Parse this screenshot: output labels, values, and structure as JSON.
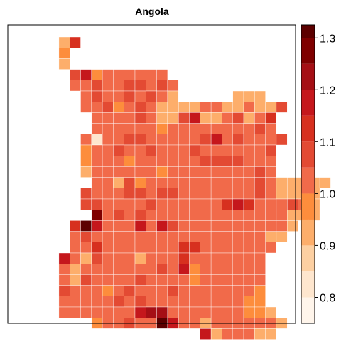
{
  "title": "Angola",
  "colors": {
    "background": "#ffffff",
    "frame": "#000000",
    "cell_stroke": "#ffffff"
  },
  "legend": {
    "breaks": [
      0.75,
      0.8,
      0.85,
      0.9,
      0.95,
      1.0,
      1.05,
      1.1,
      1.15,
      1.2,
      1.25,
      1.3,
      1.325
    ],
    "palette": [
      "#fff5eb",
      "#fee6ce",
      "#fdd0a2",
      "#fdae6b",
      "#fd8d3c",
      "#f16a4a",
      "#e34a33",
      "#d7301f",
      "#c5171c",
      "#a50f15",
      "#7f0000",
      "#5c0000"
    ],
    "ticks": [
      0.8,
      0.9,
      1.0,
      1.1,
      1.2,
      1.3
    ],
    "tick_labels": [
      "0.8",
      "0.9",
      "1.0",
      "1.1",
      "1.2",
      "1.3"
    ]
  },
  "chart_data": {
    "type": "heatmap",
    "title": "Angola",
    "grid_note": "rows from top; each row lists [start_col, values...]",
    "rows": [
      [
        [
          3,
          0.93,
          1.12
        ]
      ],
      [
        [
          3,
          0.98
        ]
      ],
      [
        [
          3,
          0.92
        ]
      ],
      [
        [
          4,
          1.05,
          1.15,
          0.95,
          1.0,
          1.03,
          1.0,
          1.03,
          1.0,
          1.0
        ]
      ],
      [
        [
          4,
          1.0,
          1.02,
          1.05,
          1.02,
          1.0,
          1.05,
          1.05,
          1.0,
          1.05,
          1.0
        ]
      ],
      [
        [
          5,
          1.0,
          1.05,
          1.0,
          1.02,
          1.05,
          1.03,
          1.05,
          1.02,
          0.93
        ],
        [
          19,
          0.93,
          0.93,
          0.93
        ]
      ],
      [
        [
          5,
          1.0,
          1.0,
          1.05,
          0.98,
          1.0,
          1.05,
          1.0,
          0.93,
          0.93,
          0.93,
          0.93,
          1.0,
          1.0,
          0.93,
          0.93,
          1.02,
          0.93,
          0.92,
          1.05
        ]
      ],
      [
        [
          6,
          1.0,
          1.0,
          1.0,
          1.02,
          1.05,
          1.0,
          0.93,
          0.93,
          1.05,
          1.15,
          0.93,
          0.93,
          1.0,
          1.05,
          0.93,
          1.0,
          1.12
        ]
      ],
      [
        [
          6,
          1.0,
          1.0,
          1.0,
          1.0,
          1.02,
          1.0,
          0.98,
          1.0,
          1.0,
          1.0,
          1.0,
          1.0,
          1.0,
          1.0,
          1.0,
          1.05,
          1.02
        ]
      ],
      [
        [
          5,
          1.0,
          0.82,
          1.02,
          1.0,
          1.05,
          1.05,
          1.0,
          1.0,
          1.02,
          1.0,
          1.0,
          1.05,
          1.15,
          1.0,
          1.05,
          1.0,
          1.0,
          1.0,
          1.05
        ]
      ],
      [
        [
          5,
          0.95,
          1.0,
          1.0,
          1.05,
          1.0,
          1.0,
          1.05,
          1.0,
          1.0,
          1.0,
          1.05,
          1.0,
          1.0,
          1.0,
          1.0,
          1.0,
          1.0,
          1.05
        ]
      ],
      [
        [
          5,
          0.95,
          1.0,
          1.02,
          1.0,
          0.98,
          1.02,
          1.0,
          1.0,
          1.0,
          1.0,
          1.0,
          1.05,
          1.05,
          1.05,
          1.05,
          1.0,
          1.0,
          1.02
        ]
      ],
      [
        [
          5,
          0.9,
          1.0,
          1.0,
          1.0,
          1.0,
          1.0,
          1.0,
          0.95,
          1.0,
          1.0,
          1.0,
          1.0,
          1.0,
          1.0,
          1.0,
          1.0,
          1.05,
          1.0
        ]
      ],
      [
        [
          6,
          1.0,
          1.02,
          0.92,
          1.05,
          0.95,
          1.0,
          1.0,
          1.0,
          1.0,
          1.0,
          1.0,
          1.0,
          1.0,
          1.0,
          1.0,
          1.05,
          1.0,
          0.93,
          0.93,
          0.93,
          0.93,
          0.93
        ]
      ],
      [
        [
          5,
          1.05,
          1.0,
          1.03,
          1.0,
          1.05,
          1.05,
          1.02,
          1.05,
          1.05,
          1.0,
          1.0,
          1.0,
          1.02,
          1.0,
          1.0,
          1.0,
          1.05,
          1.0,
          0.93,
          0.93,
          0.93,
          0.93
        ]
      ],
      [
        [
          5,
          1.05,
          1.05,
          1.02,
          1.0,
          1.03,
          1.0,
          1.05,
          1.0,
          1.0,
          1.02,
          1.0,
          1.0,
          1.0,
          1.12,
          1.15,
          1.12,
          1.0,
          1.0,
          1.0,
          1.05,
          1.0,
          0.93
        ]
      ],
      [
        [
          6,
          1.25,
          1.0,
          1.05,
          1.0,
          1.05,
          1.0,
          1.0,
          1.0,
          1.0,
          1.0,
          1.0,
          1.0,
          1.0,
          1.0,
          1.0,
          1.0,
          1.0,
          1.0,
          0.93,
          0.93,
          0.93
        ]
      ],
      [
        [
          4,
          1.12,
          1.3,
          1.15,
          1.0,
          1.0,
          1.0,
          1.15,
          1.0,
          1.15,
          1.05,
          1.0,
          1.0,
          1.0,
          1.0,
          1.0,
          1.0,
          1.0,
          1.0,
          1.0,
          1.0,
          0.93
        ]
      ],
      [
        [
          4,
          1.02,
          1.05,
          1.0,
          1.0,
          1.0,
          1.0,
          1.0,
          1.0,
          1.0,
          1.0,
          1.0,
          1.0,
          1.0,
          1.0,
          1.0,
          1.0,
          1.0,
          1.02,
          0.93,
          0.93
        ]
      ],
      [
        [
          4,
          1.0,
          1.02,
          1.12,
          1.0,
          1.0,
          1.0,
          1.0,
          1.0,
          1.0,
          1.0,
          1.12,
          1.12,
          1.0,
          1.0,
          1.0,
          1.0,
          1.0,
          1.0,
          1.0
        ]
      ],
      [
        [
          3,
          1.15,
          1.0,
          0.92,
          1.05,
          1.0,
          1.0,
          1.0,
          0.93,
          1.0,
          1.0,
          1.0,
          1.12,
          1.02,
          1.0,
          1.0,
          1.0,
          1.0,
          1.0,
          1.02
        ]
      ],
      [
        [
          3,
          1.0,
          0.93,
          1.0,
          1.02,
          1.0,
          1.0,
          1.0,
          1.0,
          1.0,
          1.05,
          1.0,
          1.15,
          0.98,
          1.0,
          1.0,
          1.0,
          1.0,
          1.0,
          1.0
        ]
      ],
      [
        [
          3,
          1.0,
          0.9,
          1.05,
          1.0,
          1.02,
          1.0,
          1.0,
          1.05,
          1.0,
          1.02,
          1.0,
          1.0,
          0.95,
          1.0,
          1.0,
          1.0,
          1.0,
          1.0,
          1.0
        ]
      ],
      [
        [
          3,
          1.05,
          1.02,
          1.0,
          1.0,
          0.95,
          1.0,
          1.05,
          1.0,
          1.0,
          1.0,
          1.05,
          1.0,
          1.0,
          1.0,
          1.0,
          1.0,
          1.0,
          1.0,
          0.95
        ]
      ],
      [
        [
          3,
          1.0,
          1.0,
          1.0,
          1.0,
          1.0,
          1.05,
          1.0,
          1.05,
          1.0,
          1.02,
          1.02,
          1.0,
          1.0,
          1.0,
          1.0,
          1.0,
          1.0,
          0.95,
          0.95
        ]
      ],
      [
        [
          3,
          1.0,
          1.0,
          1.0,
          1.0,
          1.0,
          1.02,
          1.0,
          1.15,
          1.22,
          1.2,
          1.02,
          1.0,
          1.0,
          1.0,
          1.0,
          1.0,
          1.0,
          0.95,
          0.95,
          0.93
        ]
      ],
      [
        [
          6,
          0.95,
          1.0,
          1.0,
          1.05,
          1.02,
          1.0,
          1.3,
          1.15,
          1.0,
          1.02,
          0.93,
          1.0,
          1.0,
          1.0,
          1.0,
          1.0,
          1.0,
          0.93
        ]
      ],
      [
        [
          16,
          1.15,
          0.93,
          1.0,
          1.0,
          1.0,
          0.93,
          0.93
        ]
      ]
    ]
  }
}
